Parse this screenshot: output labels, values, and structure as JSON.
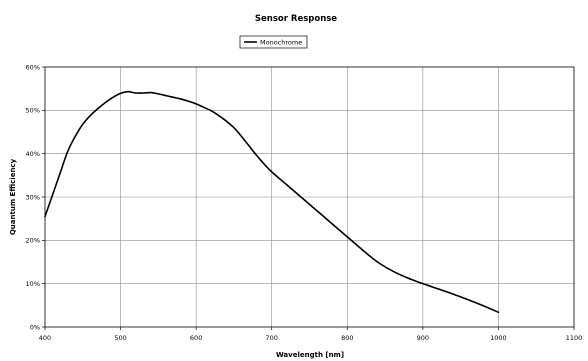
{
  "chart_data": {
    "type": "line",
    "title": "Sensor Response",
    "xlabel": "Wavelength [nm]",
    "ylabel": "Quantum Efficiency",
    "xlim": [
      400,
      1100
    ],
    "ylim": [
      0,
      60
    ],
    "x_ticks": [
      400,
      500,
      600,
      700,
      800,
      900,
      1000,
      1100
    ],
    "y_ticks": [
      0,
      10,
      20,
      30,
      40,
      50,
      60
    ],
    "y_tick_labels": [
      "0%",
      "10%",
      "20%",
      "30%",
      "40%",
      "50%",
      "60%"
    ],
    "grid": true,
    "legend_position": "top-center",
    "series": [
      {
        "name": "Monochrome",
        "color": "#000000",
        "x": [
          400,
          410,
          420,
          430,
          440,
          450,
          460,
          470,
          480,
          490,
          500,
          510,
          520,
          530,
          540,
          550,
          560,
          570,
          580,
          590,
          600,
          610,
          620,
          630,
          640,
          650,
          660,
          670,
          680,
          690,
          700,
          720,
          740,
          760,
          780,
          800,
          820,
          840,
          860,
          880,
          900,
          920,
          940,
          960,
          980,
          1000
        ],
        "y": [
          25.5,
          30.5,
          35.5,
          40.5,
          44.0,
          46.8,
          48.8,
          50.4,
          51.8,
          53.0,
          53.9,
          54.3,
          54.0,
          54.0,
          54.1,
          53.8,
          53.4,
          53.0,
          52.6,
          52.1,
          51.5,
          50.7,
          49.9,
          48.8,
          47.5,
          46.0,
          44.0,
          41.8,
          39.6,
          37.6,
          35.8,
          32.8,
          29.8,
          26.8,
          23.8,
          20.8,
          17.8,
          15.0,
          12.9,
          11.3,
          10.0,
          8.8,
          7.6,
          6.3,
          4.9,
          3.4
        ]
      }
    ]
  }
}
